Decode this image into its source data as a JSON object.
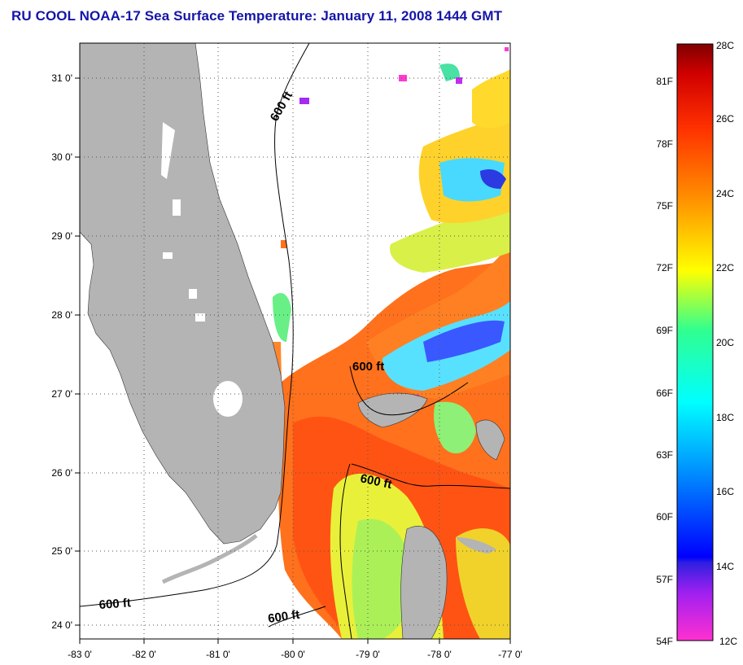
{
  "title": "RU COOL  NOAA-17  Sea Surface Temperature:  January 11, 2008 1444 GMT",
  "map": {
    "lat_labels": [
      "31 0'",
      "30 0'",
      "29 0'",
      "28 0'",
      "27 0'",
      "26 0'",
      "25 0'",
      "24 0'"
    ],
    "lon_labels": [
      "-83 0'",
      "-82 0'",
      "-81 0'",
      "-80 0'",
      "-79 0'",
      "-78 0'",
      "-77 0'"
    ],
    "contour_labels": [
      "600 ft",
      "600 ft",
      "600 ft",
      "600 ft",
      "600 ft"
    ],
    "colors": {
      "land": "#b4b4b4",
      "grid": "#555555",
      "contour": "#000000"
    }
  },
  "colorbar": {
    "celsius_labels": [
      "28C",
      "26C",
      "24C",
      "22C",
      "20C",
      "18C",
      "16C",
      "14C",
      "12C"
    ],
    "fahrenheit_labels": [
      "81F",
      "78F",
      "75F",
      "72F",
      "69F",
      "66F",
      "63F",
      "60F",
      "57F",
      "54F"
    ],
    "colors": [
      "#ff30d0",
      "#a020f0",
      "#0000ff",
      "#00a0ff",
      "#00ffff",
      "#30ff90",
      "#ffff00",
      "#ff9000",
      "#ff3000",
      "#d00000",
      "#800000"
    ]
  }
}
